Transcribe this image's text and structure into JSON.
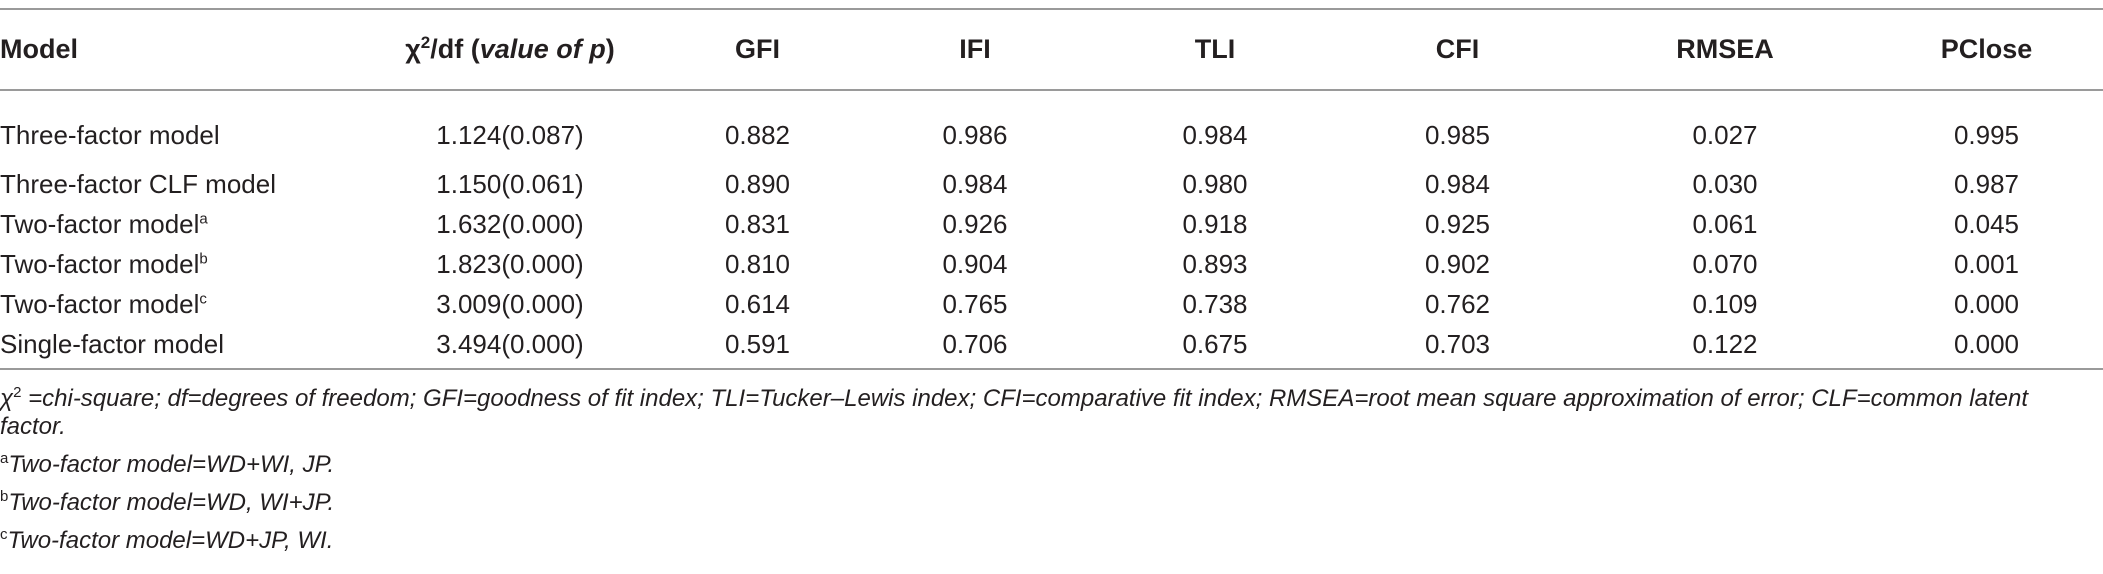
{
  "table": {
    "headers": {
      "model": "Model",
      "chi_symbol": "χ",
      "chi_sup": "2",
      "chi_rest": "/df (",
      "chi_italic": "value of p",
      "chi_close": ")",
      "gfi": "GFI",
      "ifi": "IFI",
      "tli": "TLI",
      "cfi": "CFI",
      "rmsea": "RMSEA",
      "pclose": "PClose"
    },
    "rows": [
      {
        "model": "Three-factor model",
        "sup": "",
        "chi": "1.124(0.087)",
        "gfi": "0.882",
        "ifi": "0.986",
        "tli": "0.984",
        "cfi": "0.985",
        "rmsea": "0.027",
        "pclose": "0.995"
      },
      {
        "model": "Three-factor CLF model",
        "sup": "",
        "chi": "1.150(0.061)",
        "gfi": "0.890",
        "ifi": "0.984",
        "tli": "0.980",
        "cfi": "0.984",
        "rmsea": "0.030",
        "pclose": "0.987"
      },
      {
        "model": "Two-factor model",
        "sup": "a",
        "chi": "1.632(0.000)",
        "gfi": "0.831",
        "ifi": "0.926",
        "tli": "0.918",
        "cfi": "0.925",
        "rmsea": "0.061",
        "pclose": "0.045"
      },
      {
        "model": "Two-factor model",
        "sup": "b",
        "chi": "1.823(0.000)",
        "gfi": "0.810",
        "ifi": "0.904",
        "tli": "0.893",
        "cfi": "0.902",
        "rmsea": "0.070",
        "pclose": "0.001"
      },
      {
        "model": "Two-factor model",
        "sup": "c",
        "chi": "3.009(0.000)",
        "gfi": "0.614",
        "ifi": "0.765",
        "tli": "0.738",
        "cfi": "0.762",
        "rmsea": "0.109",
        "pclose": "0.000"
      },
      {
        "model": "Single-factor model",
        "sup": "",
        "chi": "3.494(0.000)",
        "gfi": "0.591",
        "ifi": "0.706",
        "tli": "0.675",
        "cfi": "0.703",
        "rmsea": "0.122",
        "pclose": "0.000"
      }
    ]
  },
  "notes": {
    "abbrev_symbol": "χ",
    "abbrev_sup": "2",
    "abbrev_text": " =chi-square; df=degrees of freedom; GFI=goodness of fit index; TLI=Tucker–Lewis index; CFI=comparative fit index; RMSEA=root mean square approximation of error; CLF=common latent factor.",
    "footnotes": [
      {
        "mark": "a",
        "text": "Two-factor model=WD+WI, JP."
      },
      {
        "mark": "b",
        "text": "Two-factor model=WD, WI+JP."
      },
      {
        "mark": "c",
        "text": "Two-factor model=WD+JP, WI."
      }
    ]
  }
}
